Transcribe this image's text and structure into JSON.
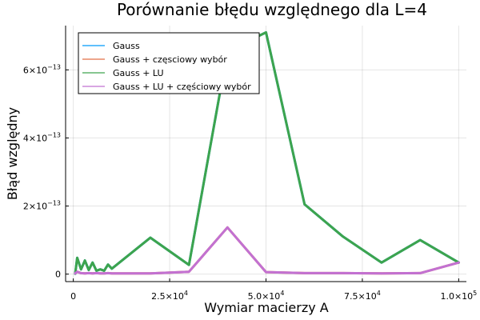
{
  "chart_data": {
    "type": "line",
    "title": "Porównanie błędu względnego dla L=4",
    "xlabel": "Wymiar macierzy A",
    "ylabel": "Błąd względny",
    "xlim": [
      -2000,
      102000
    ],
    "ylim": [
      -2.2e-14,
      7.3e-13
    ],
    "grid": true,
    "legend_position": "top-left",
    "x_ticks": [
      {
        "value": 0,
        "base": "0",
        "exp": ""
      },
      {
        "value": 25000,
        "base": "2.5×10",
        "exp": "4"
      },
      {
        "value": 50000,
        "base": "5.0×10",
        "exp": "4"
      },
      {
        "value": 75000,
        "base": "7.5×10",
        "exp": "4"
      },
      {
        "value": 100000,
        "base": "1.0×10",
        "exp": "5"
      }
    ],
    "y_ticks": [
      {
        "value": 0,
        "base": "0",
        "exp": ""
      },
      {
        "value": 2e-13,
        "base": "2×10",
        "exp": "−13"
      },
      {
        "value": 4e-13,
        "base": "4×10",
        "exp": "−13"
      },
      {
        "value": 6e-13,
        "base": "6×10",
        "exp": "−13"
      }
    ],
    "series": [
      {
        "name": "Gauss",
        "color": "#009af9",
        "x": [
          500,
          1000,
          2000,
          3000,
          4000,
          5000,
          6000,
          7000,
          8000,
          9000,
          10000,
          20000,
          30000,
          40000,
          50000,
          60000,
          70000,
          80000,
          90000,
          100000
        ],
        "y": [
          1e-15,
          4.8e-14,
          1.4e-14,
          4e-14,
          1.2e-14,
          3.4e-14,
          1e-14,
          1.4e-14,
          1e-14,
          2.8e-14,
          1.6e-14,
          1.07e-13,
          2.7e-14,
          6.55e-13,
          7.1e-13,
          2.05e-13,
          1.1e-13,
          3.4e-14,
          1e-13,
          3.4e-14
        ]
      },
      {
        "name": "Gauss + częsciowy wybór",
        "color": "#e26f46",
        "x": [
          500,
          1000,
          2000,
          3000,
          4000,
          5000,
          6000,
          7000,
          8000,
          9000,
          10000,
          20000,
          30000,
          40000,
          50000,
          60000,
          70000,
          80000,
          90000,
          100000
        ],
        "y": [
          2e-15,
          7e-15,
          3e-15,
          2e-15,
          3e-15,
          2e-15,
          3e-15,
          2e-15,
          2e-15,
          3e-15,
          2e-15,
          2e-15,
          7e-15,
          1.37e-13,
          6e-15,
          3e-15,
          3e-15,
          2e-15,
          3e-15,
          3.4e-14
        ]
      },
      {
        "name": "Gauss + LU",
        "color": "#3da44d",
        "x": [
          500,
          1000,
          2000,
          3000,
          4000,
          5000,
          6000,
          7000,
          8000,
          9000,
          10000,
          20000,
          30000,
          40000,
          50000,
          60000,
          70000,
          80000,
          90000,
          100000
        ],
        "y": [
          1e-15,
          4.8e-14,
          1.4e-14,
          4e-14,
          1.2e-14,
          3.4e-14,
          1e-14,
          1.4e-14,
          1e-14,
          2.8e-14,
          1.6e-14,
          1.07e-13,
          2.7e-14,
          6.55e-13,
          7.1e-13,
          2.05e-13,
          1.1e-13,
          3.4e-14,
          1e-13,
          3.4e-14
        ]
      },
      {
        "name": "Gauss + LU + częściowy wybór",
        "color": "#c271d2",
        "x": [
          500,
          1000,
          2000,
          3000,
          4000,
          5000,
          6000,
          7000,
          8000,
          9000,
          10000,
          20000,
          30000,
          40000,
          50000,
          60000,
          70000,
          80000,
          90000,
          100000
        ],
        "y": [
          2e-15,
          7e-15,
          3e-15,
          2e-15,
          3e-15,
          2e-15,
          3e-15,
          2e-15,
          2e-15,
          3e-15,
          2e-15,
          2e-15,
          7e-15,
          1.37e-13,
          6e-15,
          3e-15,
          3e-15,
          2e-15,
          3e-15,
          3.4e-14
        ]
      }
    ]
  }
}
